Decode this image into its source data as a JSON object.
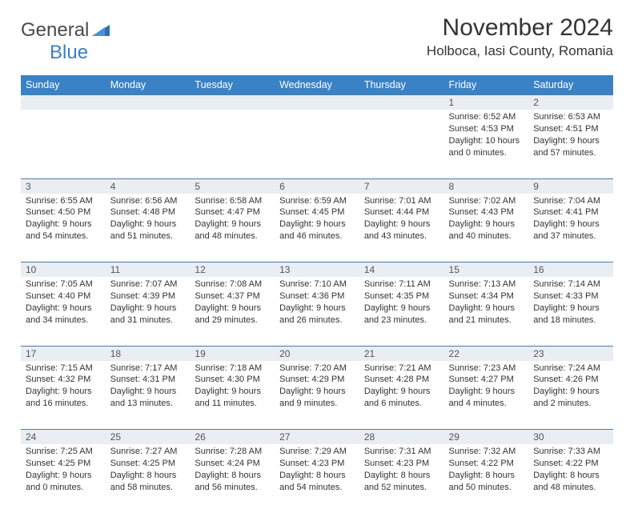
{
  "brand": {
    "part1": "General",
    "part2": "Blue"
  },
  "title": "November 2024",
  "location": "Holboca, Iasi County, Romania",
  "colors": {
    "header_bg": "#3b82c4",
    "header_text": "#ffffff",
    "daynum_bg": "#e9eef3",
    "border": "#4a7aa8",
    "text": "#333333"
  },
  "day_headers": [
    "Sunday",
    "Monday",
    "Tuesday",
    "Wednesday",
    "Thursday",
    "Friday",
    "Saturday"
  ],
  "weeks": [
    [
      null,
      null,
      null,
      null,
      null,
      {
        "n": "1",
        "sr": "6:52 AM",
        "ss": "4:53 PM",
        "dl": "10 hours and 0 minutes."
      },
      {
        "n": "2",
        "sr": "6:53 AM",
        "ss": "4:51 PM",
        "dl": "9 hours and 57 minutes."
      }
    ],
    [
      {
        "n": "3",
        "sr": "6:55 AM",
        "ss": "4:50 PM",
        "dl": "9 hours and 54 minutes."
      },
      {
        "n": "4",
        "sr": "6:56 AM",
        "ss": "4:48 PM",
        "dl": "9 hours and 51 minutes."
      },
      {
        "n": "5",
        "sr": "6:58 AM",
        "ss": "4:47 PM",
        "dl": "9 hours and 48 minutes."
      },
      {
        "n": "6",
        "sr": "6:59 AM",
        "ss": "4:45 PM",
        "dl": "9 hours and 46 minutes."
      },
      {
        "n": "7",
        "sr": "7:01 AM",
        "ss": "4:44 PM",
        "dl": "9 hours and 43 minutes."
      },
      {
        "n": "8",
        "sr": "7:02 AM",
        "ss": "4:43 PM",
        "dl": "9 hours and 40 minutes."
      },
      {
        "n": "9",
        "sr": "7:04 AM",
        "ss": "4:41 PM",
        "dl": "9 hours and 37 minutes."
      }
    ],
    [
      {
        "n": "10",
        "sr": "7:05 AM",
        "ss": "4:40 PM",
        "dl": "9 hours and 34 minutes."
      },
      {
        "n": "11",
        "sr": "7:07 AM",
        "ss": "4:39 PM",
        "dl": "9 hours and 31 minutes."
      },
      {
        "n": "12",
        "sr": "7:08 AM",
        "ss": "4:37 PM",
        "dl": "9 hours and 29 minutes."
      },
      {
        "n": "13",
        "sr": "7:10 AM",
        "ss": "4:36 PM",
        "dl": "9 hours and 26 minutes."
      },
      {
        "n": "14",
        "sr": "7:11 AM",
        "ss": "4:35 PM",
        "dl": "9 hours and 23 minutes."
      },
      {
        "n": "15",
        "sr": "7:13 AM",
        "ss": "4:34 PM",
        "dl": "9 hours and 21 minutes."
      },
      {
        "n": "16",
        "sr": "7:14 AM",
        "ss": "4:33 PM",
        "dl": "9 hours and 18 minutes."
      }
    ],
    [
      {
        "n": "17",
        "sr": "7:15 AM",
        "ss": "4:32 PM",
        "dl": "9 hours and 16 minutes."
      },
      {
        "n": "18",
        "sr": "7:17 AM",
        "ss": "4:31 PM",
        "dl": "9 hours and 13 minutes."
      },
      {
        "n": "19",
        "sr": "7:18 AM",
        "ss": "4:30 PM",
        "dl": "9 hours and 11 minutes."
      },
      {
        "n": "20",
        "sr": "7:20 AM",
        "ss": "4:29 PM",
        "dl": "9 hours and 9 minutes."
      },
      {
        "n": "21",
        "sr": "7:21 AM",
        "ss": "4:28 PM",
        "dl": "9 hours and 6 minutes."
      },
      {
        "n": "22",
        "sr": "7:23 AM",
        "ss": "4:27 PM",
        "dl": "9 hours and 4 minutes."
      },
      {
        "n": "23",
        "sr": "7:24 AM",
        "ss": "4:26 PM",
        "dl": "9 hours and 2 minutes."
      }
    ],
    [
      {
        "n": "24",
        "sr": "7:25 AM",
        "ss": "4:25 PM",
        "dl": "9 hours and 0 minutes."
      },
      {
        "n": "25",
        "sr": "7:27 AM",
        "ss": "4:25 PM",
        "dl": "8 hours and 58 minutes."
      },
      {
        "n": "26",
        "sr": "7:28 AM",
        "ss": "4:24 PM",
        "dl": "8 hours and 56 minutes."
      },
      {
        "n": "27",
        "sr": "7:29 AM",
        "ss": "4:23 PM",
        "dl": "8 hours and 54 minutes."
      },
      {
        "n": "28",
        "sr": "7:31 AM",
        "ss": "4:23 PM",
        "dl": "8 hours and 52 minutes."
      },
      {
        "n": "29",
        "sr": "7:32 AM",
        "ss": "4:22 PM",
        "dl": "8 hours and 50 minutes."
      },
      {
        "n": "30",
        "sr": "7:33 AM",
        "ss": "4:22 PM",
        "dl": "8 hours and 48 minutes."
      }
    ]
  ],
  "labels": {
    "sunrise": "Sunrise:",
    "sunset": "Sunset:",
    "daylight": "Daylight:"
  }
}
